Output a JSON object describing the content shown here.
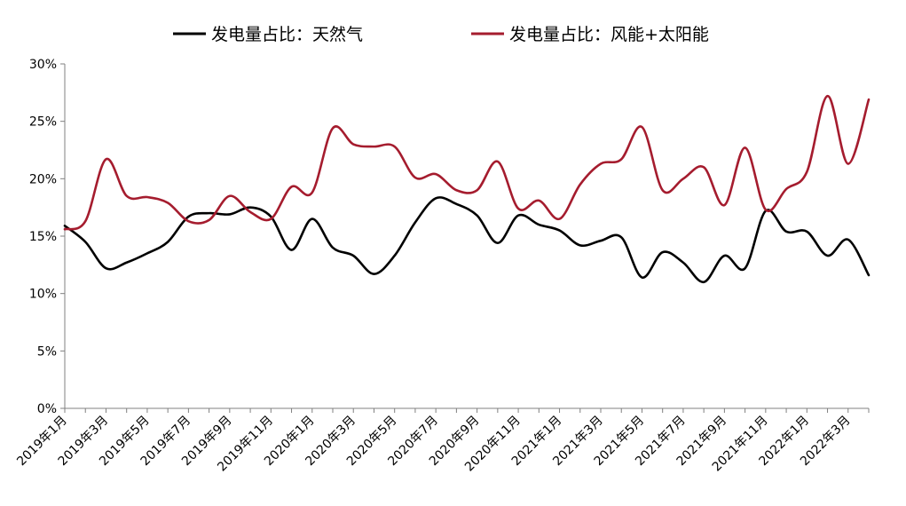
{
  "chart_data": {
    "type": "line",
    "title": "",
    "xlabel": "",
    "ylabel": "",
    "ylim": [
      0,
      30
    ],
    "yticks": [
      0,
      5,
      10,
      15,
      20,
      25,
      30
    ],
    "ytick_labels": [
      "0%",
      "5%",
      "10%",
      "15%",
      "20%",
      "25%",
      "30%"
    ],
    "y_unit": "%",
    "grid": false,
    "legend_position": "top",
    "smooth": true,
    "categories": [
      "2019年1月",
      "2019年2月",
      "2019年3月",
      "2019年4月",
      "2019年5月",
      "2019年6月",
      "2019年7月",
      "2019年8月",
      "2019年9月",
      "2019年10月",
      "2019年11月",
      "2019年12月",
      "2020年1月",
      "2020年2月",
      "2020年3月",
      "2020年4月",
      "2020年5月",
      "2020年6月",
      "2020年7月",
      "2020年8月",
      "2020年9月",
      "2020年10月",
      "2020年11月",
      "2020年12月",
      "2021年1月",
      "2021年2月",
      "2021年3月",
      "2021年4月",
      "2021年5月",
      "2021年6月",
      "2021年7月",
      "2021年8月",
      "2021年9月",
      "2021年10月",
      "2021年11月",
      "2021年12月",
      "2022年1月",
      "2022年2月",
      "2022年3月",
      "2022年4月"
    ],
    "x_tick_labels": [
      "2019年1月",
      "2019年3月",
      "2019年5月",
      "2019年7月",
      "2019年9月",
      "2019年11月",
      "2020年1月",
      "2020年3月",
      "2020年5月",
      "2020年7月",
      "2020年9月",
      "2020年11月",
      "2021年1月",
      "2021年3月",
      "2021年5月",
      "2021年7月",
      "2021年9月",
      "2021年11月",
      "2022年1月",
      "2022年3月"
    ],
    "series": [
      {
        "name": "发电量占比：天然气",
        "color": "#000000",
        "values": [
          15.9,
          14.5,
          12.2,
          12.7,
          13.5,
          14.5,
          16.7,
          17.0,
          16.9,
          17.5,
          16.7,
          13.8,
          16.5,
          14.0,
          13.3,
          11.7,
          13.3,
          16.2,
          18.3,
          17.8,
          16.8,
          14.4,
          16.8,
          16.0,
          15.5,
          14.2,
          14.6,
          14.9,
          11.4,
          13.6,
          12.7,
          11.0,
          13.3,
          12.2,
          17.2,
          15.4,
          15.4,
          13.3,
          14.7,
          11.6
        ]
      },
      {
        "name": "发电量占比：风能+太阳能",
        "color": "#A51C2E",
        "values": [
          15.6,
          16.3,
          21.7,
          18.5,
          18.4,
          17.9,
          16.3,
          16.4,
          18.5,
          17.1,
          16.5,
          19.3,
          18.8,
          24.4,
          23.0,
          22.8,
          22.8,
          20.1,
          20.4,
          19.0,
          19.0,
          21.5,
          17.4,
          18.1,
          16.5,
          19.5,
          21.3,
          21.7,
          24.5,
          19.0,
          20.0,
          21.0,
          17.7,
          22.7,
          17.3,
          19.1,
          20.6,
          27.2,
          21.3,
          26.9
        ]
      }
    ]
  }
}
